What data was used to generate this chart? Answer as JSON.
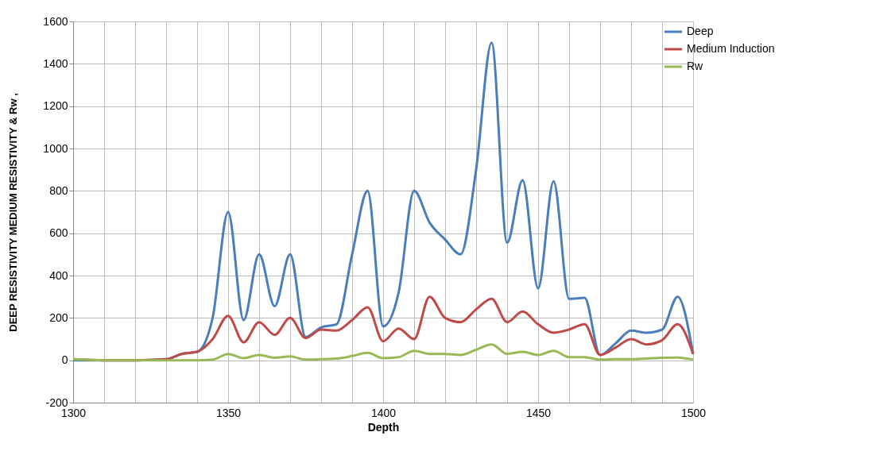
{
  "chart_data": {
    "type": "line",
    "xlabel": "Depth",
    "ylabel": "DEEP RESISTIVITY MEDIUM RESISTIVITY & Rw ,",
    "x": [
      1300,
      1310,
      1320,
      1330,
      1335,
      1340,
      1345,
      1350,
      1355,
      1360,
      1365,
      1370,
      1375,
      1380,
      1385,
      1390,
      1395,
      1400,
      1405,
      1410,
      1415,
      1420,
      1425,
      1430,
      1435,
      1440,
      1445,
      1450,
      1455,
      1460,
      1465,
      1470,
      1475,
      1480,
      1485,
      1490,
      1495,
      1500
    ],
    "series": [
      {
        "name": "Deep",
        "color": "#4a7ebb",
        "values": [
          0,
          0,
          0,
          5,
          30,
          40,
          200,
          700,
          190,
          500,
          255,
          500,
          110,
          155,
          170,
          500,
          800,
          160,
          320,
          800,
          650,
          570,
          500,
          900,
          1500,
          555,
          850,
          340,
          845,
          290,
          295,
          25,
          80,
          140,
          130,
          145,
          300,
          30
        ]
      },
      {
        "name": "Medium Induction",
        "color": "#be4b48",
        "values": [
          5,
          0,
          0,
          5,
          30,
          40,
          100,
          210,
          85,
          180,
          120,
          200,
          105,
          145,
          140,
          190,
          250,
          90,
          150,
          100,
          300,
          200,
          180,
          240,
          290,
          180,
          230,
          170,
          130,
          145,
          170,
          25,
          60,
          100,
          75,
          95,
          170,
          30
        ]
      },
      {
        "name": "Rw",
        "color": "#98b954",
        "values": [
          5,
          0,
          0,
          0,
          0,
          0,
          3,
          30,
          10,
          25,
          12,
          18,
          3,
          5,
          8,
          20,
          35,
          10,
          15,
          45,
          30,
          30,
          25,
          50,
          75,
          30,
          40,
          25,
          45,
          15,
          15,
          3,
          5,
          5,
          8,
          12,
          13,
          3
        ]
      }
    ],
    "xlim": [
      1300,
      1500
    ],
    "xticks": [
      1300,
      {
        "value": 1310,
        "label": null
      },
      {
        "value": 1320,
        "label": null
      },
      {
        "value": 1330,
        "label": null
      },
      {
        "value": 1340,
        "label": null
      },
      1350,
      {
        "value": 1360,
        "label": null
      },
      {
        "value": 1370,
        "label": null
      },
      {
        "value": 1380,
        "label": null
      },
      {
        "value": 1390,
        "label": null
      },
      1400,
      {
        "value": 1410,
        "label": null
      },
      {
        "value": 1420,
        "label": null
      },
      {
        "value": 1430,
        "label": null
      },
      {
        "value": 1440,
        "label": null
      },
      1450,
      {
        "value": 1460,
        "label": null
      },
      {
        "value": 1470,
        "label": null
      },
      {
        "value": 1480,
        "label": null
      },
      {
        "value": 1490,
        "label": null
      },
      1500
    ],
    "ylim": [
      -200,
      1600
    ],
    "yticks": [
      -200,
      0,
      200,
      400,
      600,
      800,
      1000,
      1200,
      1400,
      1600
    ],
    "grid": true,
    "legend": "right",
    "marker": "none",
    "line_style": "solid"
  }
}
